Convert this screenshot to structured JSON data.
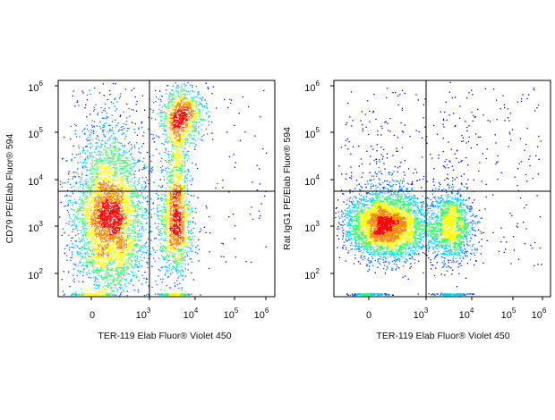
{
  "chart_data": [
    {
      "type": "scatter",
      "subtype": "flow-cytometry-pseudocolor-density",
      "xlabel": "TER-119  Elab Fluor® Violet 450",
      "ylabel": "CD79 PE/Elab Fluor® 594",
      "x_scale": "biexponential",
      "y_scale": "log",
      "x_ticks": [
        {
          "base": "0",
          "exp": ""
        },
        {
          "base": "10",
          "exp": "3"
        },
        {
          "base": "10",
          "exp": "4"
        },
        {
          "base": "10",
          "exp": "5"
        },
        {
          "base": "10",
          "exp": "6"
        }
      ],
      "y_ticks": [
        {
          "base": "10",
          "exp": "6"
        },
        {
          "base": "10",
          "exp": "5"
        },
        {
          "base": "10",
          "exp": "4"
        },
        {
          "base": "10",
          "exp": "3"
        },
        {
          "base": "10",
          "exp": "2"
        }
      ],
      "gate": {
        "x": 1300,
        "y": 4500
      },
      "populations": [
        {
          "x_center": 300,
          "y_center": 1100,
          "relative_density": "high"
        },
        {
          "x_center": 3500,
          "y_center": 1000,
          "relative_density": "medium"
        },
        {
          "x_center": 5000,
          "y_center": 250000,
          "relative_density": "medium"
        }
      ],
      "grid": false,
      "legend": "none"
    },
    {
      "type": "scatter",
      "subtype": "flow-cytometry-pseudocolor-density",
      "xlabel": "TER-119  Elab Fluor® Violet 450",
      "ylabel": "Rat IgG1 PE/Elab Fluor® 594",
      "x_scale": "biexponential",
      "y_scale": "log",
      "x_ticks": [
        {
          "base": "0",
          "exp": ""
        },
        {
          "base": "10",
          "exp": "3"
        },
        {
          "base": "10",
          "exp": "4"
        },
        {
          "base": "10",
          "exp": "5"
        },
        {
          "base": "10",
          "exp": "6"
        }
      ],
      "y_ticks": [
        {
          "base": "10",
          "exp": "6"
        },
        {
          "base": "10",
          "exp": "5"
        },
        {
          "base": "10",
          "exp": "4"
        },
        {
          "base": "10",
          "exp": "3"
        },
        {
          "base": "10",
          "exp": "2"
        }
      ],
      "gate": {
        "x": 1300,
        "y": 4500
      },
      "populations": [
        {
          "x_center": 300,
          "y_center": 1100,
          "relative_density": "high"
        },
        {
          "x_center": 3500,
          "y_center": 1000,
          "relative_density": "medium"
        }
      ],
      "grid": false,
      "legend": "none"
    }
  ],
  "colors": {
    "density_scale": [
      "#0000cc",
      "#0066ff",
      "#00ccff",
      "#33ff66",
      "#ffff00",
      "#ff8800",
      "#ff0000"
    ],
    "gate_line": "#000000",
    "frame": "#000000"
  }
}
